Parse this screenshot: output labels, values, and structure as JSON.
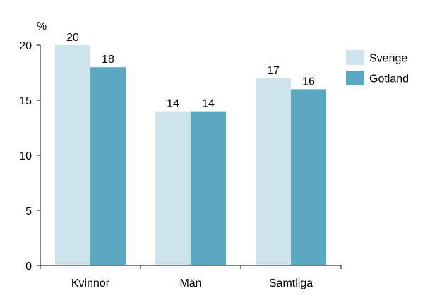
{
  "chart_data": {
    "type": "bar",
    "unit": "%",
    "categories": [
      "Kvinnor",
      "Män",
      "Samtliga"
    ],
    "series": [
      {
        "name": "Sverige",
        "values": [
          20,
          14,
          17
        ],
        "color": "#cde4ec"
      },
      {
        "name": "Gotland",
        "values": [
          18,
          14,
          16
        ],
        "color": "#5aa7c2"
      }
    ],
    "yticks": [
      0,
      5,
      10,
      15,
      20
    ],
    "ylim": [
      0,
      20
    ],
    "grid": false,
    "legend": "top-right",
    "axis_color": "#000000"
  }
}
